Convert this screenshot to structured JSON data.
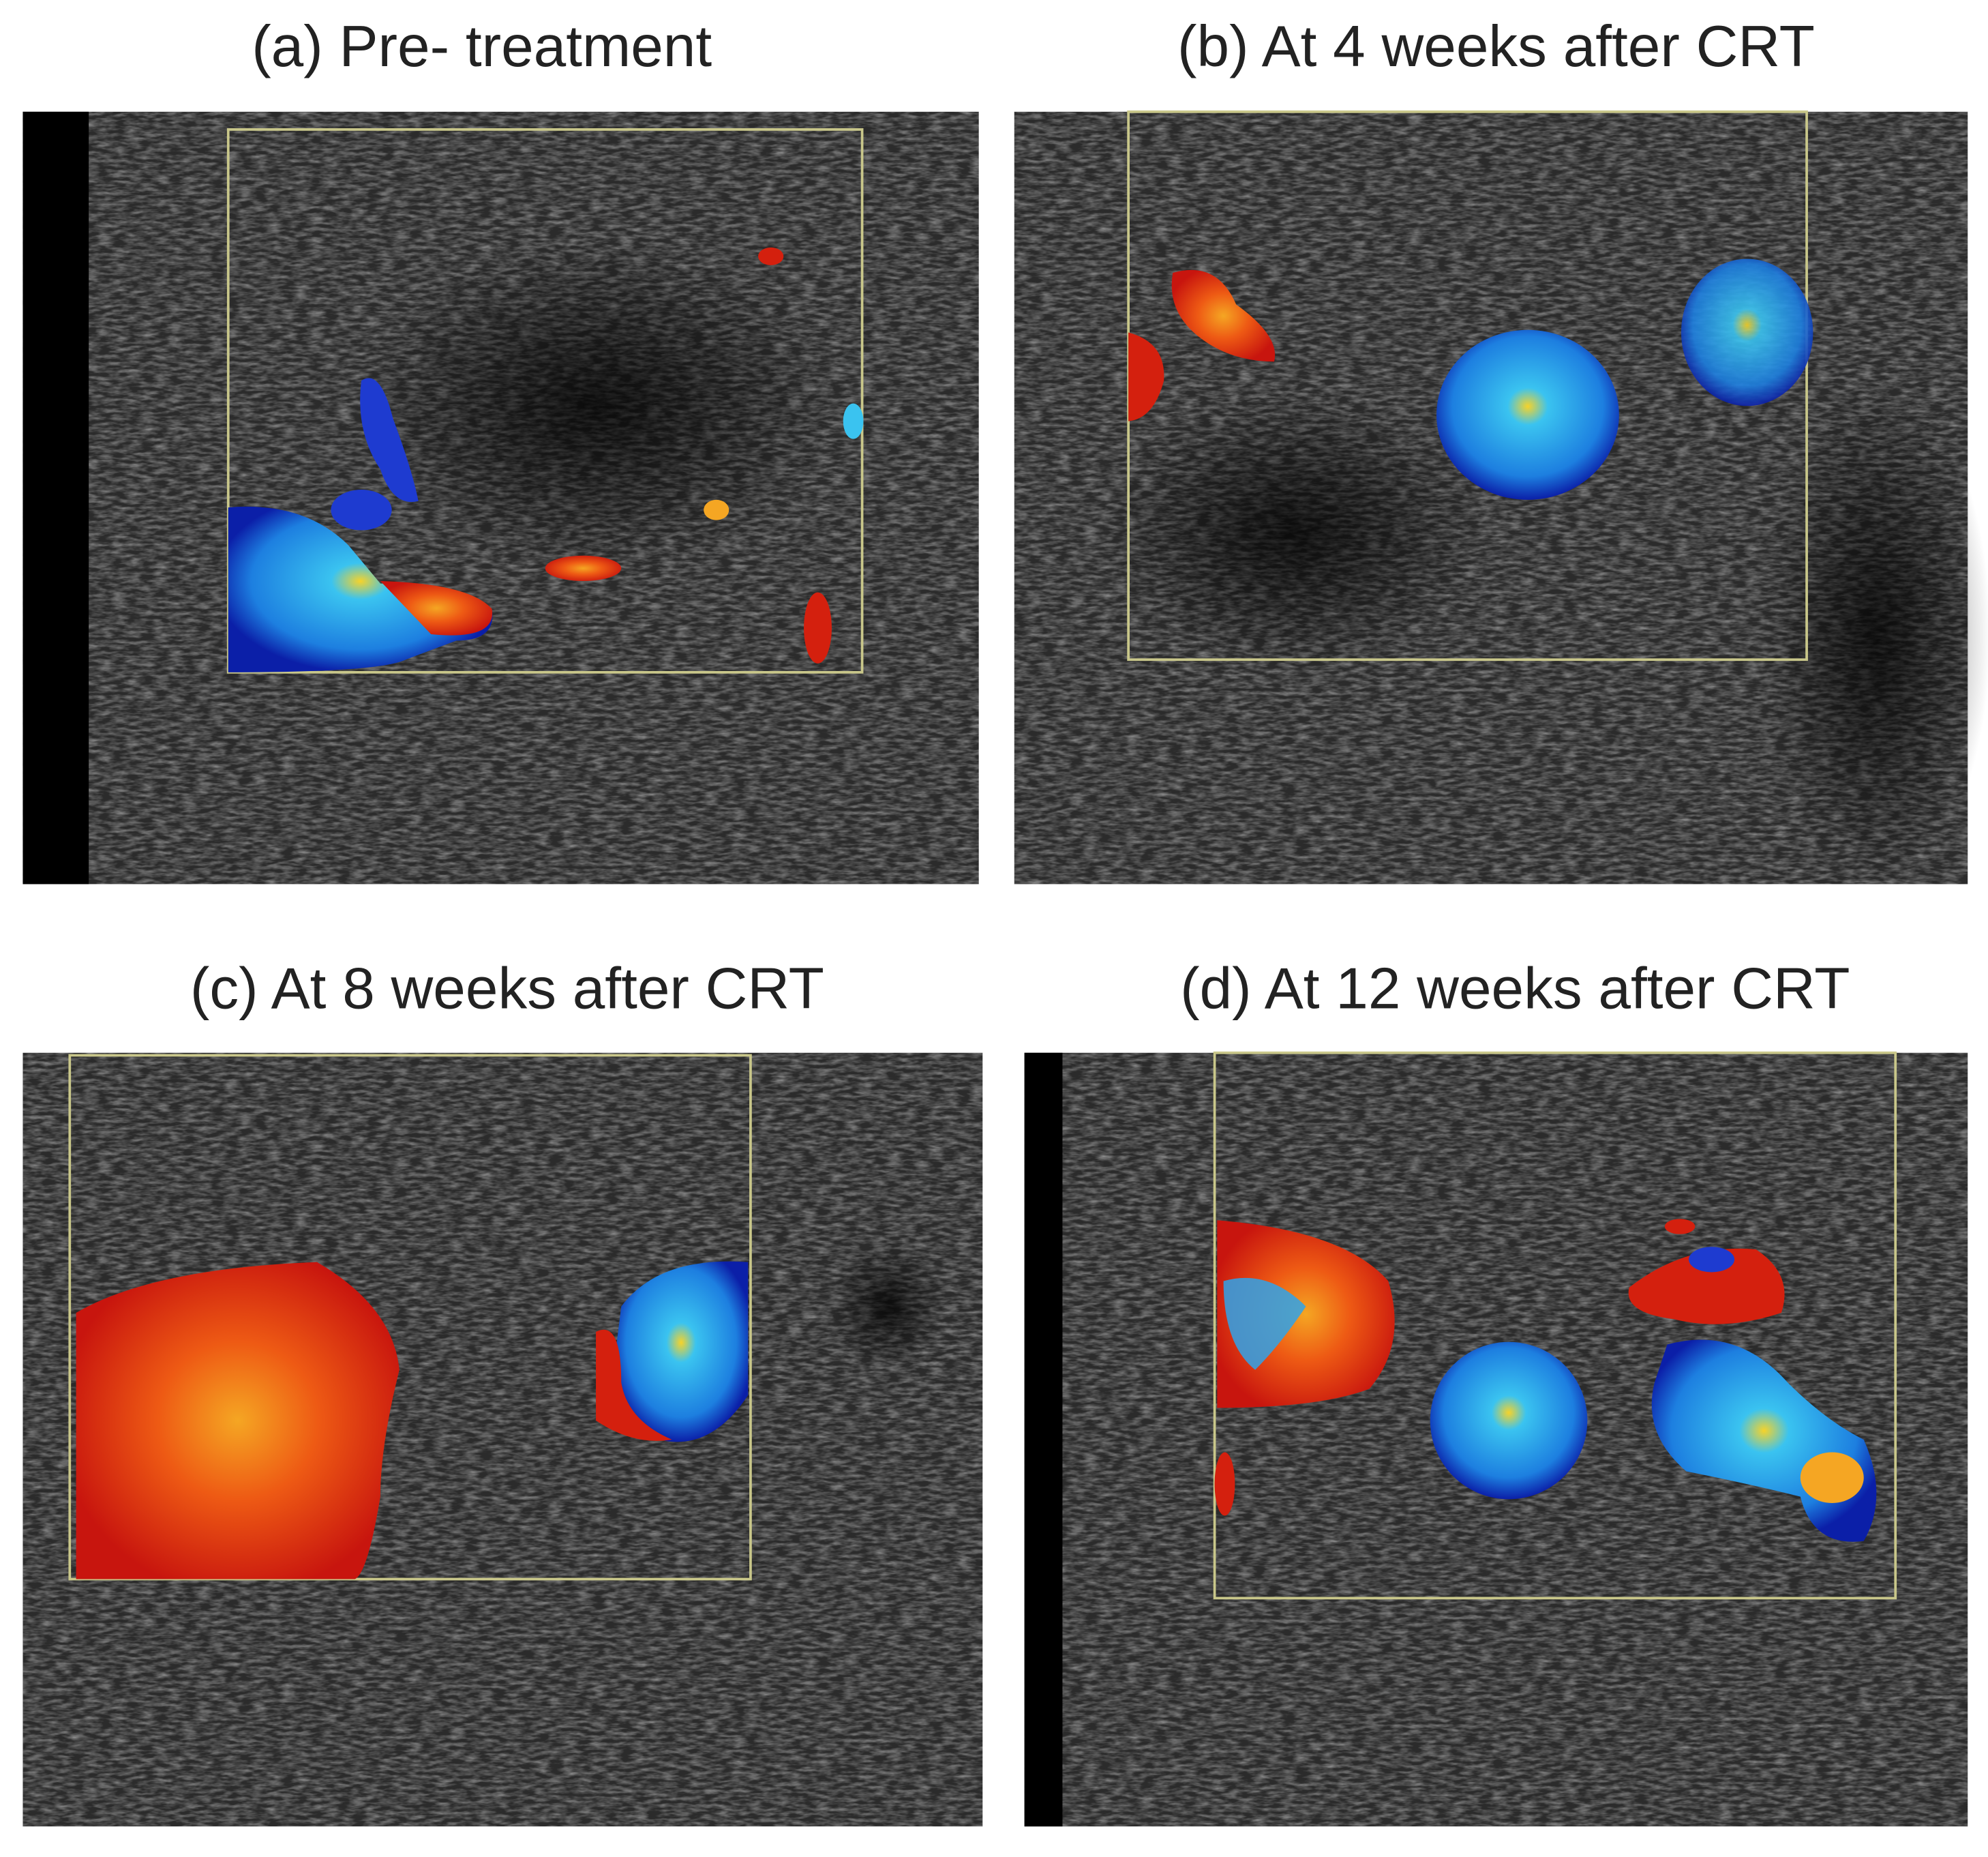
{
  "panels": [
    {
      "title": "(a) Pre- treatment"
    },
    {
      "title": "(b) At 4 weeks after CRT"
    },
    {
      "title": "(c) At 8 weeks after CRT"
    },
    {
      "title": "(d) At 12 weeks after CRT"
    }
  ]
}
